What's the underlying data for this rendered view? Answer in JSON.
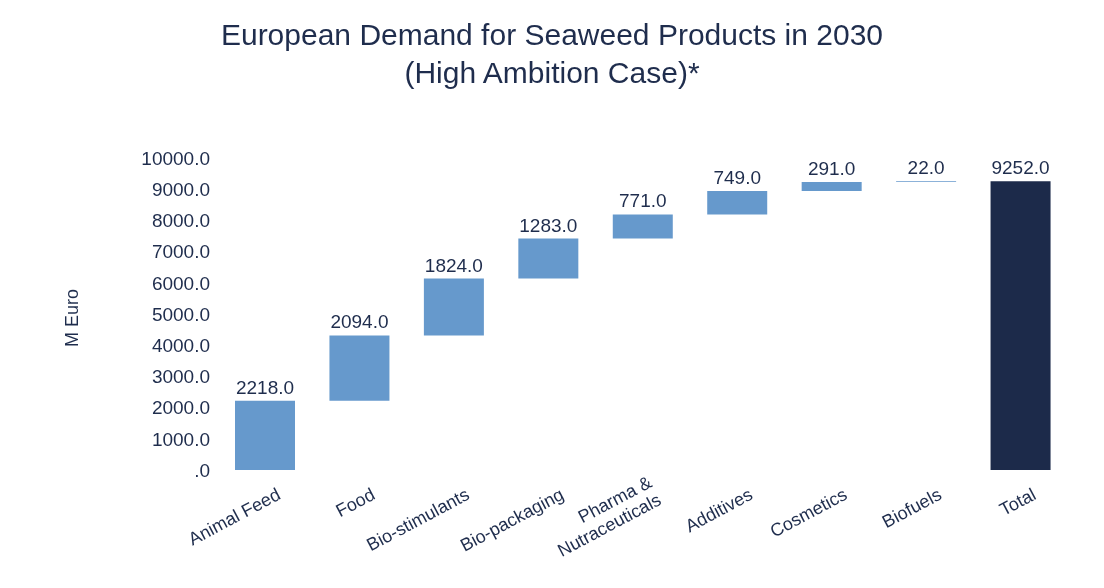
{
  "chart_data": {
    "type": "bar",
    "title": "European Demand for Seaweed Products in 2030\n(High Ambition Case)*",
    "ylabel": "M Euro",
    "categories": [
      "Animal Feed",
      "Food",
      "Bio-stimulants",
      "Bio-packaging",
      "Pharma & Nutraceuticals",
      "Additives",
      "Cosmetics",
      "Biofuels",
      "Total"
    ],
    "values": [
      2218,
      2094,
      1824,
      1283,
      771,
      749,
      291,
      22,
      9252
    ],
    "base": [
      0,
      2218,
      4312,
      6136,
      7419,
      8190,
      8939,
      9230,
      0
    ],
    "colors": [
      "#6699cc",
      "#6699cc",
      "#6699cc",
      "#6699cc",
      "#6699cc",
      "#6699cc",
      "#6699cc",
      "#6699cc",
      "#1c2a4a"
    ],
    "value_labels": [
      "2218.0",
      "2094.0",
      "1824.0",
      "1283.0",
      "771.0",
      "749.0",
      "291.0",
      "22.0",
      "9252.0"
    ],
    "ylim": [
      0,
      10000
    ],
    "yticks": [
      {
        "value": 0,
        "label": ".0"
      },
      {
        "value": 1000,
        "label": "1000.0"
      },
      {
        "value": 2000,
        "label": "2000.0"
      },
      {
        "value": 3000,
        "label": "3000.0"
      },
      {
        "value": 4000,
        "label": "4000.0"
      },
      {
        "value": 5000,
        "label": "5000.0"
      },
      {
        "value": 6000,
        "label": "6000.0"
      },
      {
        "value": 7000,
        "label": "7000.0"
      },
      {
        "value": 8000,
        "label": "8000.0"
      },
      {
        "value": 9000,
        "label": "9000.0"
      },
      {
        "value": 10000,
        "label": "10000.0"
      }
    ],
    "grid": false,
    "legend": false
  }
}
